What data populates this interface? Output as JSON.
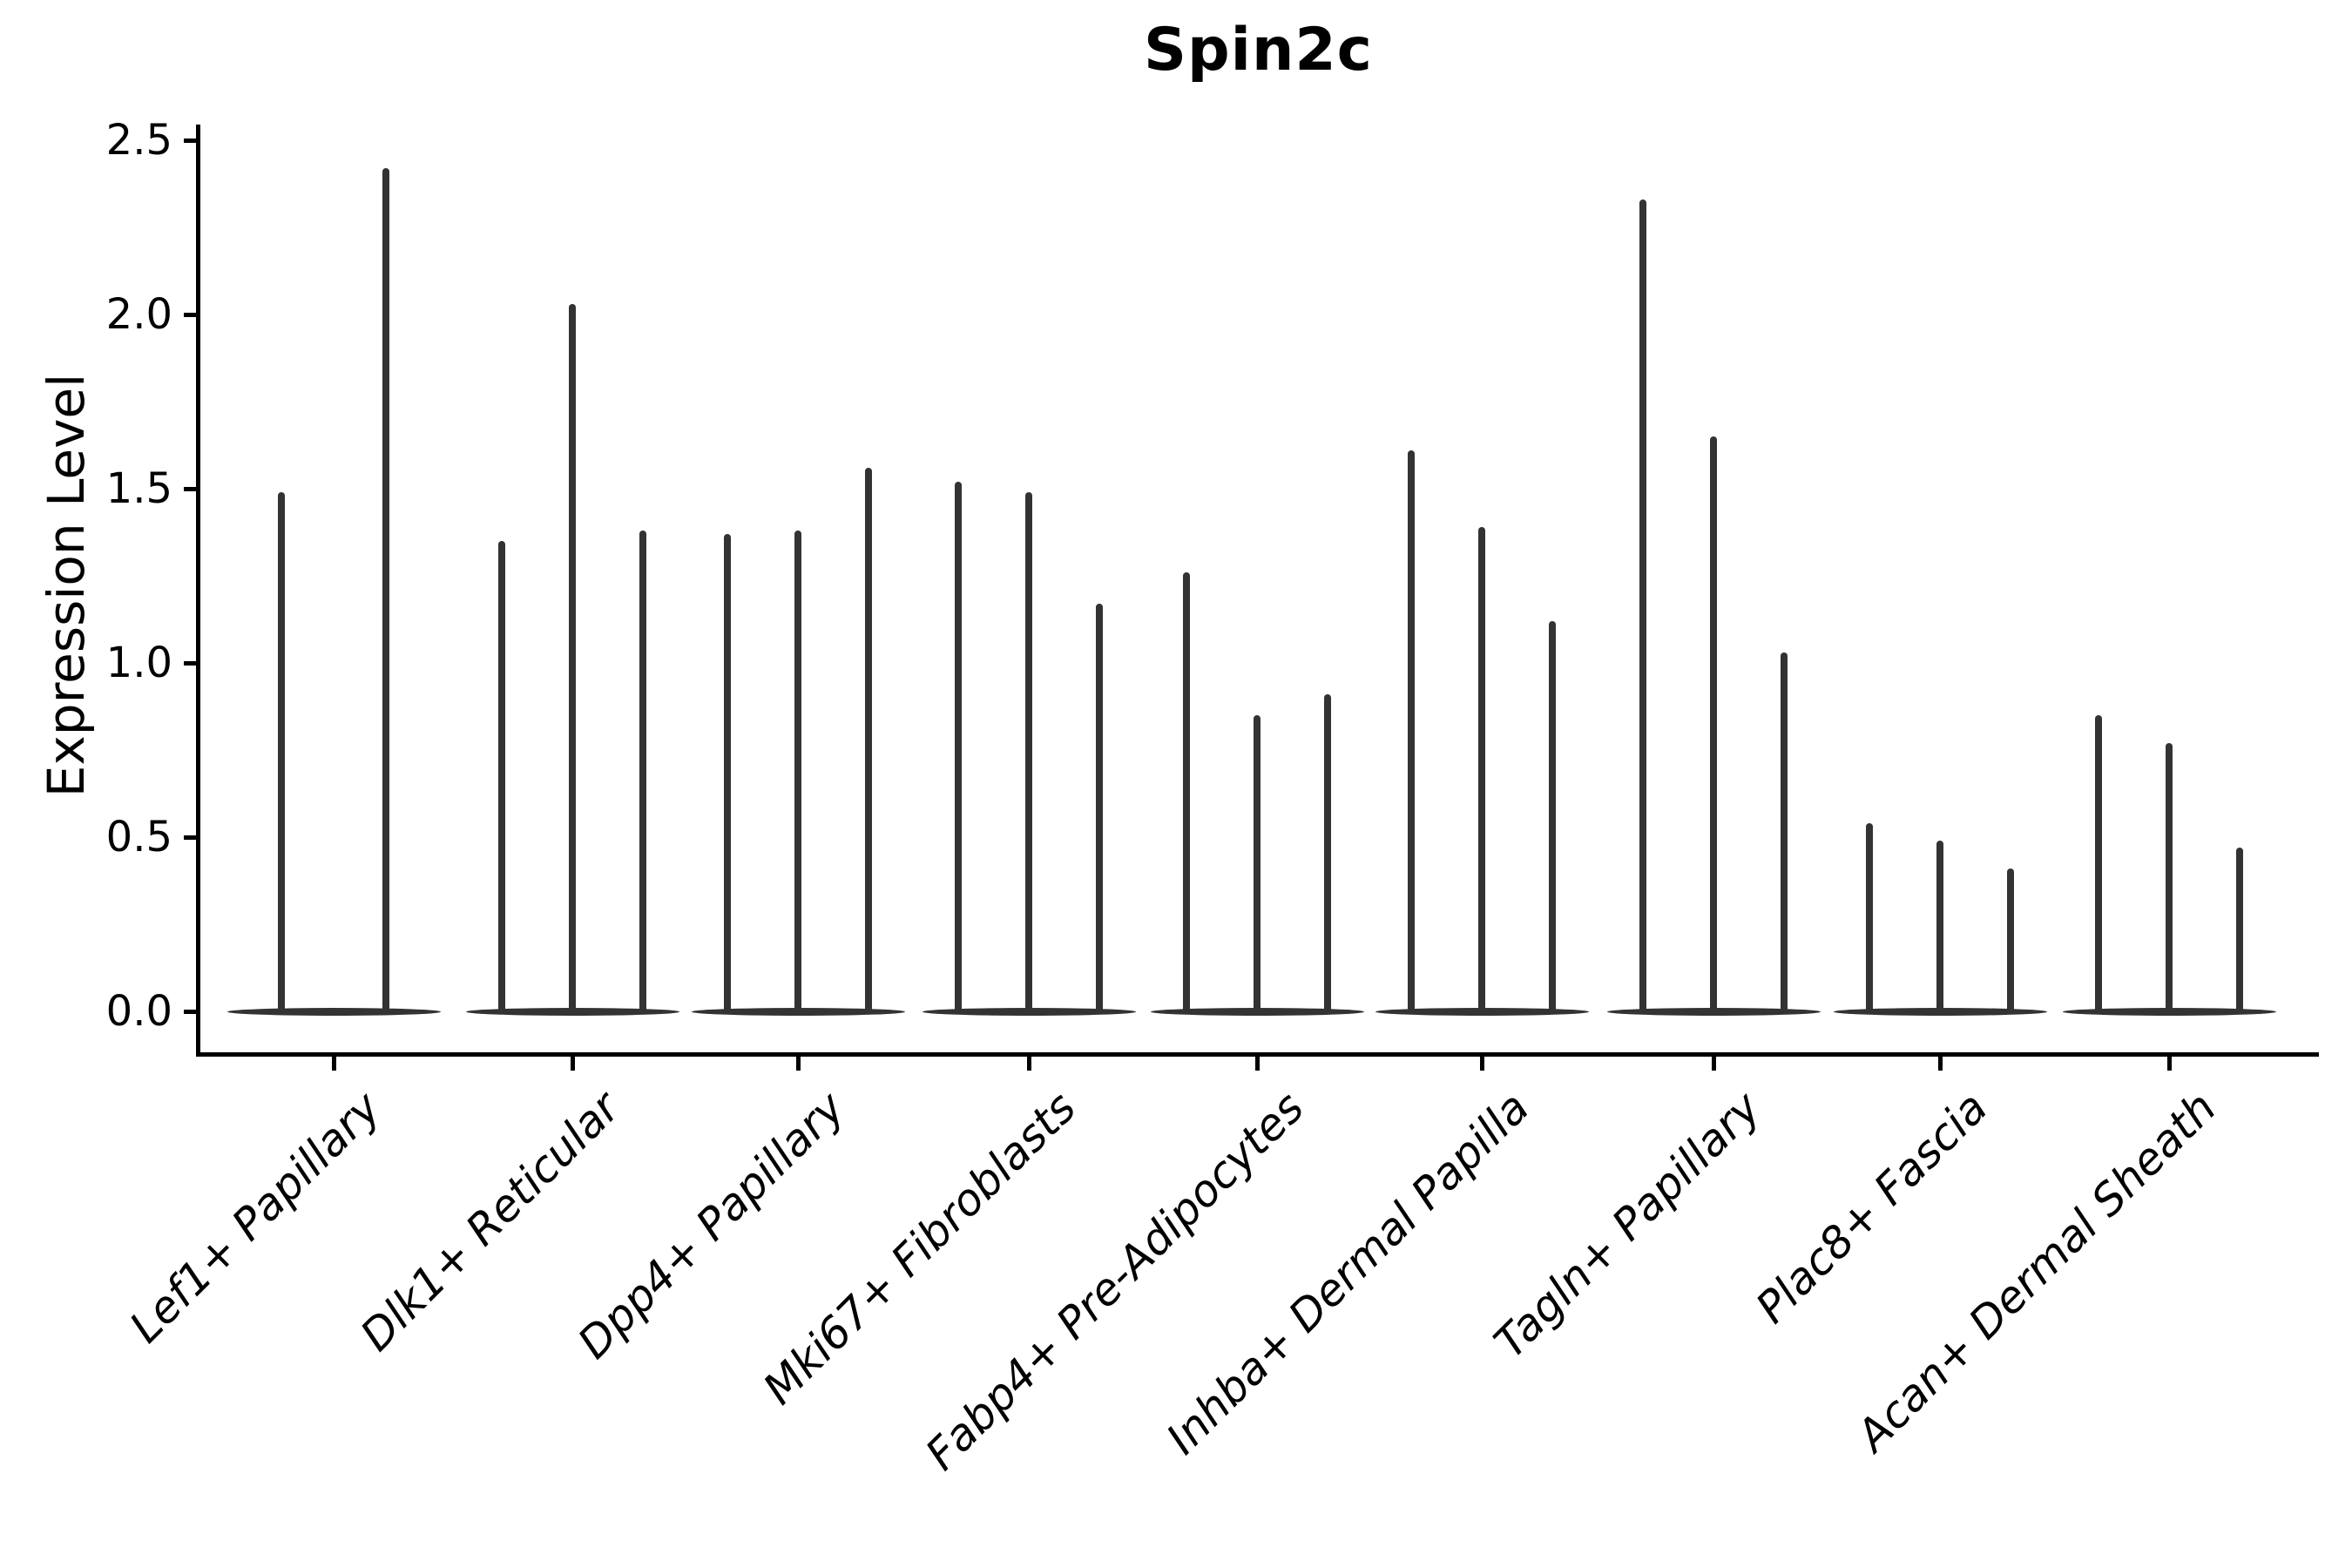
{
  "title": "Spin2c",
  "y_axis": {
    "label": "Expression Level",
    "tick_labels": [
      "0.0",
      "0.5",
      "1.0",
      "1.5",
      "2.0",
      "2.5"
    ]
  },
  "chart_data": {
    "type": "violin",
    "title": "Spin2c",
    "xlabel": "",
    "ylabel": "Expression Level",
    "ylim": [
      0,
      2.5
    ],
    "yticks": [
      0.0,
      0.5,
      1.0,
      1.5,
      2.0,
      2.5
    ],
    "grid": false,
    "legend": "none",
    "description": "Single-cell expression violin plot; each category shows flat violins at 0 with thin spikes whose tops mark the maximum expression value.",
    "categories": [
      "Lef1+ Papillary",
      "Dlk1+ Reticular",
      "Dpp4+ Papillary",
      "Mki67+ Fibroblasts",
      "Fabp4+ Pre-Adipocytes",
      "Inhba+ Dermal Papilla",
      "Tagln+ Papillary",
      "Plac8+ Fascia",
      "Acan+ Dermal Sheath"
    ],
    "groups": [
      {
        "category": "Lef1+ Papillary",
        "n_violins": 2,
        "spike_tops": [
          1.49,
          2.42
        ]
      },
      {
        "category": "Dlk1+ Reticular",
        "n_violins": 3,
        "spike_tops": [
          1.35,
          2.03,
          1.38
        ]
      },
      {
        "category": "Dpp4+ Papillary",
        "n_violins": 3,
        "spike_tops": [
          1.37,
          1.38,
          1.56
        ]
      },
      {
        "category": "Mki67+ Fibroblasts",
        "n_violins": 3,
        "spike_tops": [
          1.52,
          1.49,
          1.17
        ]
      },
      {
        "category": "Fabp4+ Pre-Adipocytes",
        "n_violins": 3,
        "spike_tops": [
          1.26,
          0.85,
          0.91
        ]
      },
      {
        "category": "Inhba+ Dermal Papilla",
        "n_violins": 3,
        "spike_tops": [
          1.61,
          1.39,
          1.12
        ]
      },
      {
        "category": "Tagln+ Papillary",
        "n_violins": 3,
        "spike_tops": [
          2.33,
          1.65,
          1.03
        ]
      },
      {
        "category": "Plac8+ Fascia",
        "n_violins": 3,
        "spike_tops": [
          0.54,
          0.49,
          0.41
        ]
      },
      {
        "category": "Acan+ Dermal Sheath",
        "n_violins": 3,
        "spike_tops": [
          0.85,
          0.77,
          0.47
        ]
      }
    ]
  },
  "colors": {
    "background": "#ffffff",
    "violin": "#333333",
    "axis": "#000000",
    "text": "#000000"
  }
}
